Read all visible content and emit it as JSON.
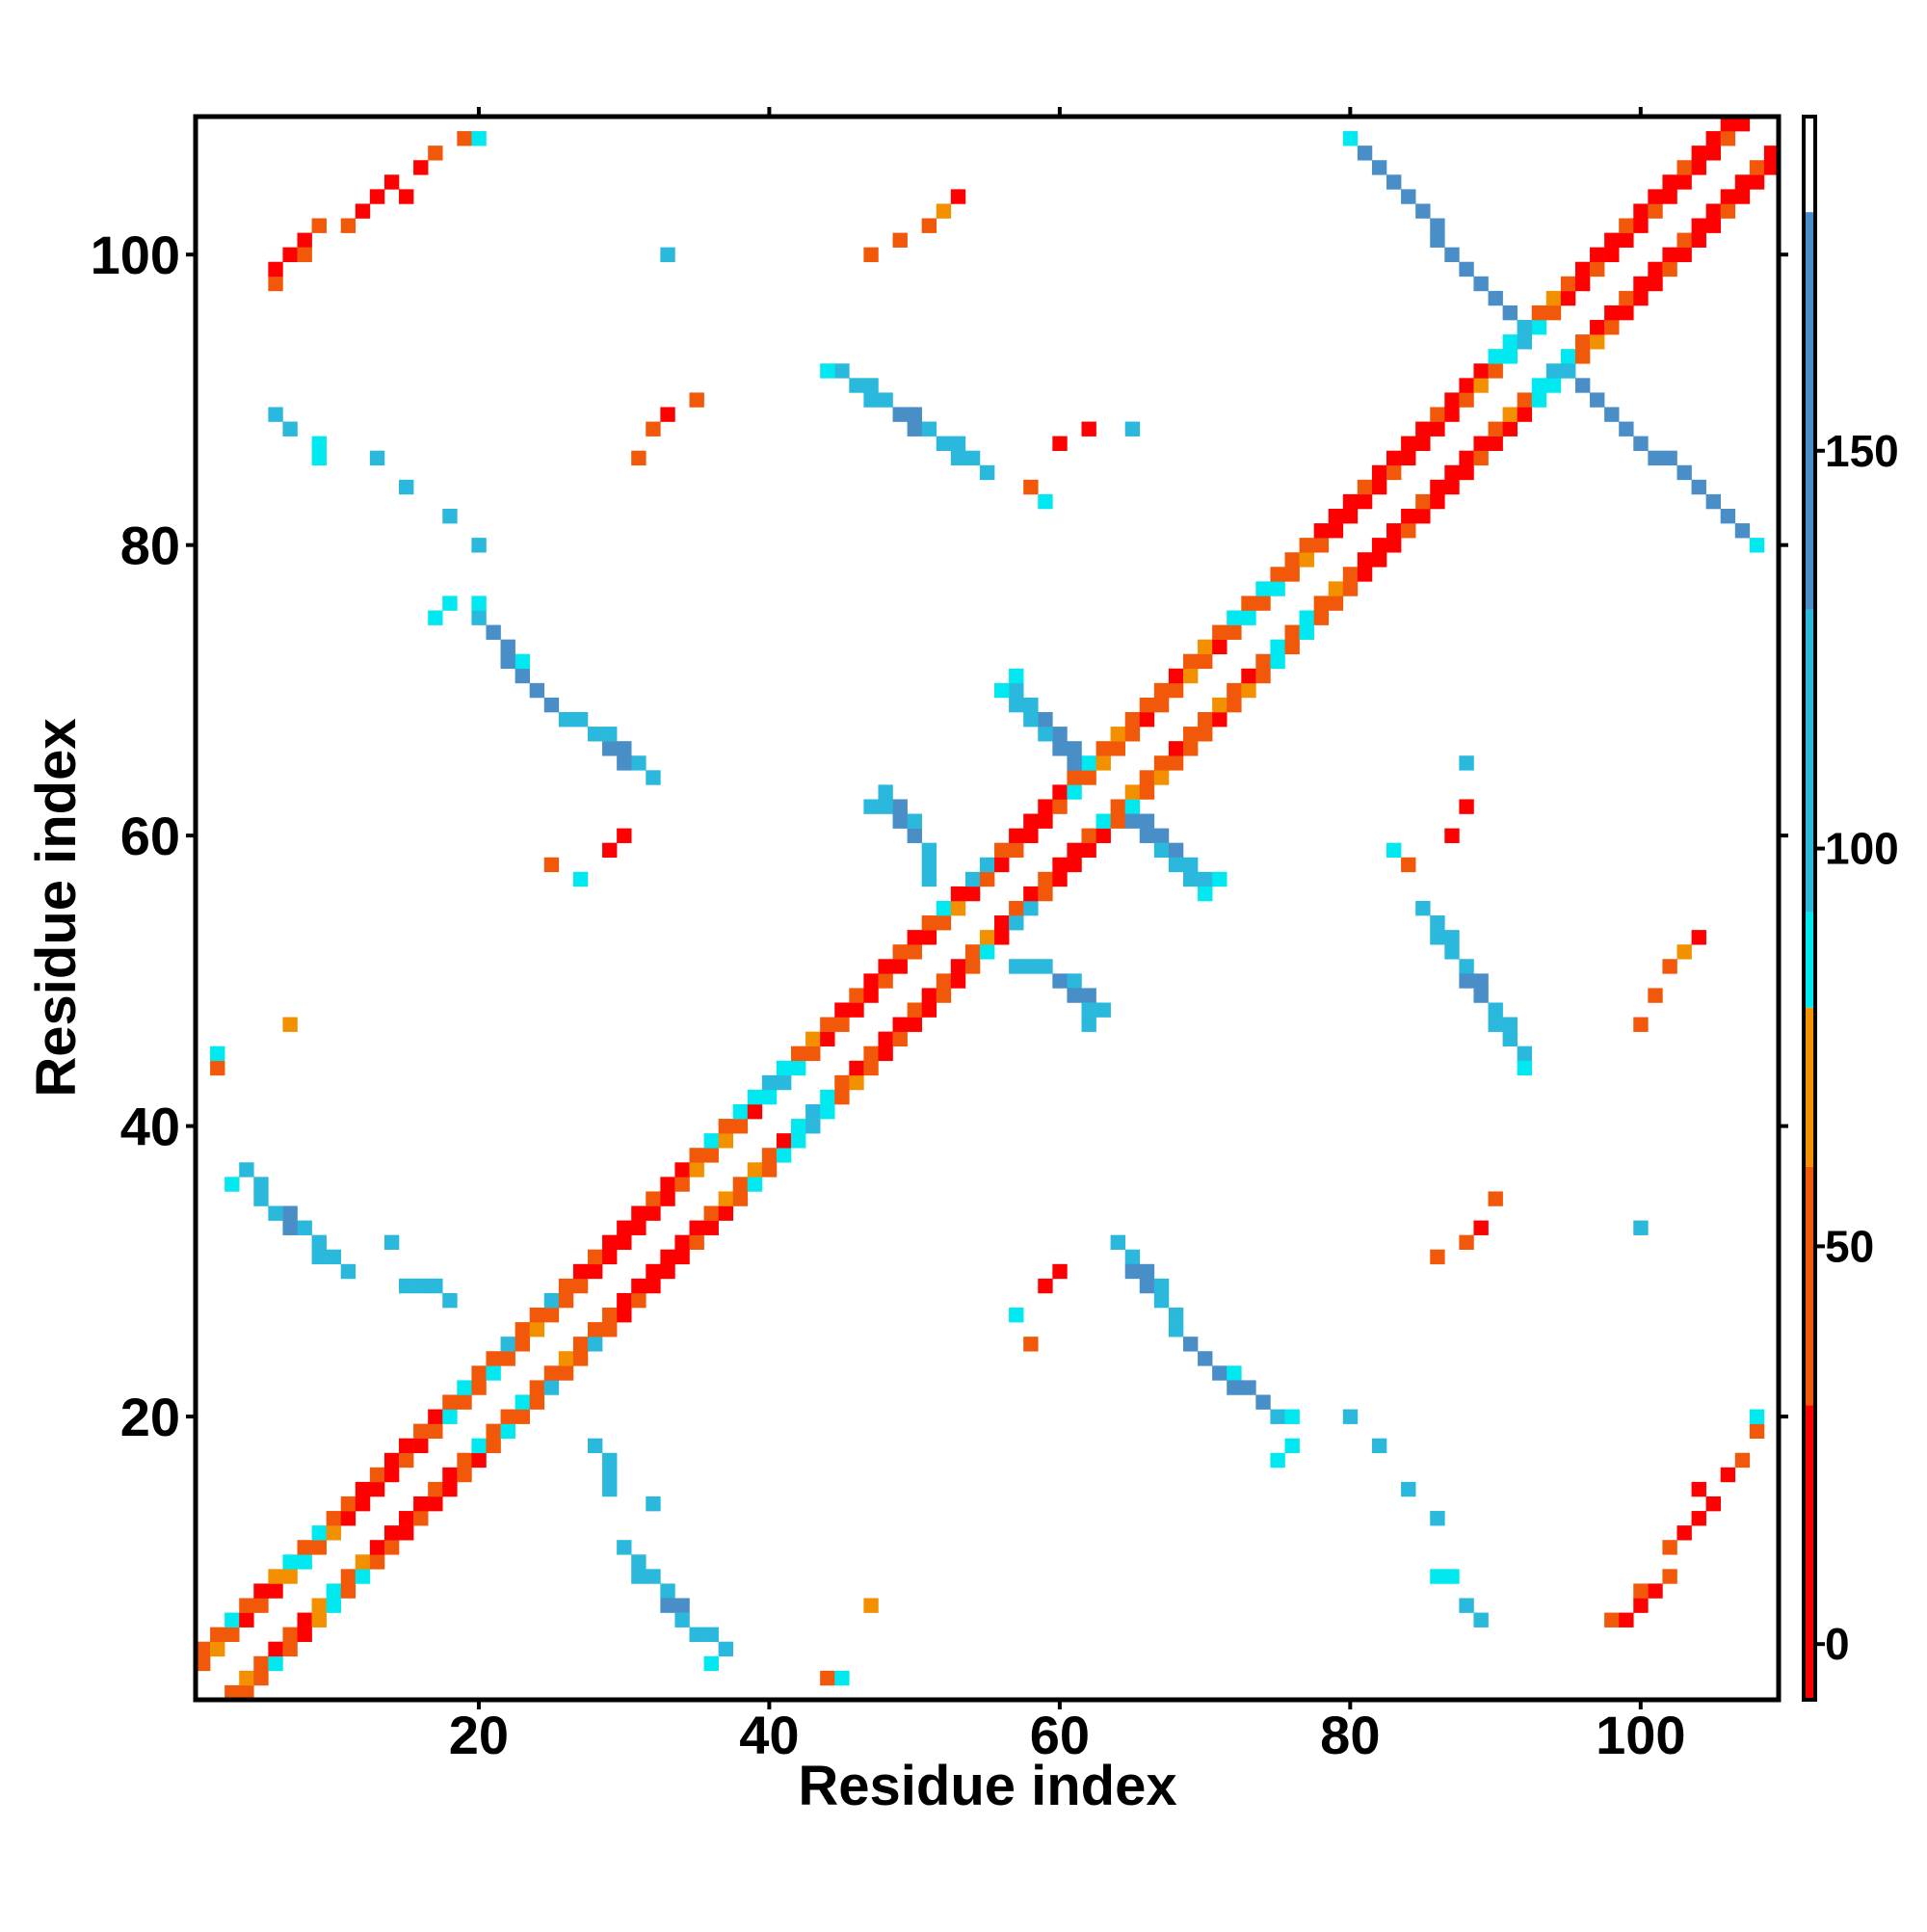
{
  "chart_data": {
    "type": "heatmap",
    "xlabel": "Residue index",
    "ylabel": "Residue index",
    "xlim": [
      0.5,
      109.5
    ],
    "ylim": [
      0.5,
      109.5
    ],
    "xticks": [
      20,
      40,
      60,
      80,
      100
    ],
    "yticks": [
      20,
      40,
      60,
      80,
      100
    ],
    "symmetric": true,
    "colorbar": {
      "lim": [
        -7,
        192
      ],
      "ticks": [
        0,
        50,
        100,
        150
      ],
      "bins": [
        {
          "from": -7,
          "to": 30,
          "color": "#ff0000"
        },
        {
          "from": 30,
          "to": 60,
          "color": "#f2580a"
        },
        {
          "from": 60,
          "to": 80,
          "color": "#f29000"
        },
        {
          "from": 80,
          "to": 92,
          "color": "#00e8f0"
        },
        {
          "from": 92,
          "to": 130,
          "color": "#2ab8dc"
        },
        {
          "from": 130,
          "to": 180,
          "color": "#4a8ec8"
        },
        {
          "from": 180,
          "to": 192,
          "color": "#ffffff"
        }
      ]
    },
    "cells": [
      [
        3,
        1,
        45
      ],
      [
        4,
        1,
        45
      ],
      [
        4,
        2,
        70
      ],
      [
        5,
        2,
        45
      ],
      [
        5,
        3,
        45
      ],
      [
        6,
        3,
        85
      ],
      [
        6,
        4,
        15
      ],
      [
        7,
        4,
        45
      ],
      [
        7,
        5,
        45
      ],
      [
        8,
        5,
        15
      ],
      [
        8,
        6,
        15
      ],
      [
        9,
        6,
        70
      ],
      [
        9,
        7,
        70
      ],
      [
        10,
        7,
        85
      ],
      [
        10,
        8,
        85
      ],
      [
        11,
        8,
        45
      ],
      [
        11,
        9,
        45
      ],
      [
        12,
        9,
        85
      ],
      [
        12,
        10,
        70
      ],
      [
        13,
        10,
        45
      ],
      [
        13,
        11,
        15
      ],
      [
        14,
        11,
        45
      ],
      [
        14,
        12,
        15
      ],
      [
        15,
        12,
        15
      ],
      [
        15,
        13,
        15
      ],
      [
        16,
        13,
        45
      ],
      [
        16,
        14,
        15
      ],
      [
        17,
        14,
        15
      ],
      [
        17,
        15,
        45
      ],
      [
        18,
        15,
        15
      ],
      [
        18,
        16,
        15
      ],
      [
        19,
        16,
        45
      ],
      [
        19,
        17,
        45
      ],
      [
        20,
        17,
        15
      ],
      [
        20,
        18,
        85
      ],
      [
        21,
        18,
        45
      ],
      [
        21,
        19,
        45
      ],
      [
        22,
        19,
        85
      ],
      [
        22,
        20,
        45
      ],
      [
        23,
        20,
        45
      ],
      [
        23,
        21,
        85
      ],
      [
        24,
        21,
        45
      ],
      [
        24,
        22,
        45
      ],
      [
        25,
        22,
        110
      ],
      [
        25,
        23,
        45
      ],
      [
        26,
        23,
        45
      ],
      [
        26,
        24,
        70
      ],
      [
        27,
        24,
        45
      ],
      [
        27,
        25,
        45
      ],
      [
        28,
        25,
        110
      ],
      [
        28,
        26,
        45
      ],
      [
        29,
        26,
        45
      ],
      [
        29,
        27,
        45
      ],
      [
        30,
        27,
        15
      ],
      [
        30,
        28,
        15
      ],
      [
        31,
        28,
        45
      ],
      [
        31,
        29,
        15
      ],
      [
        32,
        29,
        15
      ],
      [
        32,
        30,
        15
      ],
      [
        33,
        30,
        15
      ],
      [
        33,
        31,
        15
      ],
      [
        34,
        31,
        15
      ],
      [
        34,
        32,
        15
      ],
      [
        35,
        32,
        45
      ],
      [
        35,
        33,
        15
      ],
      [
        36,
        33,
        15
      ],
      [
        36,
        34,
        45
      ],
      [
        37,
        34,
        15
      ],
      [
        37,
        35,
        70
      ],
      [
        38,
        35,
        45
      ],
      [
        38,
        36,
        45
      ],
      [
        39,
        36,
        85
      ],
      [
        39,
        37,
        70
      ],
      [
        40,
        37,
        45
      ],
      [
        40,
        38,
        45
      ],
      [
        41,
        38,
        85
      ],
      [
        41,
        39,
        15
      ],
      [
        42,
        39,
        85
      ],
      [
        42,
        40,
        85
      ],
      [
        43,
        40,
        110
      ],
      [
        43,
        41,
        110
      ],
      [
        44,
        41,
        85
      ],
      [
        44,
        42,
        85
      ],
      [
        45,
        42,
        45
      ],
      [
        45,
        43,
        45
      ],
      [
        46,
        43,
        70
      ],
      [
        46,
        44,
        15
      ],
      [
        47,
        44,
        45
      ],
      [
        47,
        45,
        45
      ],
      [
        48,
        45,
        15
      ],
      [
        48,
        46,
        15
      ],
      [
        49,
        46,
        45
      ],
      [
        49,
        47,
        15
      ],
      [
        50,
        47,
        15
      ],
      [
        50,
        48,
        45
      ],
      [
        51,
        48,
        15
      ],
      [
        51,
        49,
        15
      ],
      [
        52,
        49,
        45
      ],
      [
        52,
        50,
        45
      ],
      [
        53,
        50,
        15
      ],
      [
        53,
        51,
        15
      ],
      [
        54,
        51,
        45
      ],
      [
        54,
        52,
        45
      ],
      [
        55,
        52,
        85
      ],
      [
        55,
        53,
        70
      ],
      [
        56,
        53,
        15
      ],
      [
        56,
        54,
        15
      ],
      [
        57,
        54,
        110
      ],
      [
        57,
        55,
        45
      ],
      [
        58,
        55,
        110
      ],
      [
        58,
        56,
        15
      ],
      [
        59,
        56,
        45
      ],
      [
        59,
        57,
        45
      ],
      [
        60,
        57,
        15
      ],
      [
        60,
        58,
        15
      ],
      [
        61,
        58,
        15
      ],
      [
        61,
        59,
        15
      ],
      [
        62,
        59,
        15
      ],
      [
        62,
        60,
        45
      ],
      [
        63,
        60,
        15
      ],
      [
        63,
        61,
        85
      ],
      [
        64,
        61,
        45
      ],
      [
        64,
        62,
        45
      ],
      [
        65,
        62,
        85
      ],
      [
        65,
        63,
        70
      ],
      [
        66,
        63,
        45
      ],
      [
        66,
        64,
        45
      ],
      [
        67,
        64,
        70
      ],
      [
        67,
        65,
        45
      ],
      [
        68,
        65,
        45
      ],
      [
        68,
        66,
        15
      ],
      [
        69,
        66,
        45
      ],
      [
        69,
        67,
        45
      ],
      [
        70,
        67,
        45
      ],
      [
        70,
        68,
        45
      ],
      [
        71,
        68,
        15
      ],
      [
        71,
        69,
        70
      ],
      [
        72,
        69,
        45
      ],
      [
        72,
        70,
        45
      ],
      [
        73,
        70,
        70
      ],
      [
        73,
        71,
        15
      ],
      [
        74,
        71,
        45
      ],
      [
        74,
        72,
        45
      ],
      [
        75,
        72,
        85
      ],
      [
        75,
        73,
        85
      ],
      [
        76,
        73,
        45
      ],
      [
        76,
        74,
        45
      ],
      [
        77,
        74,
        85
      ],
      [
        77,
        75,
        85
      ],
      [
        78,
        75,
        45
      ],
      [
        78,
        76,
        45
      ],
      [
        79,
        76,
        45
      ],
      [
        79,
        77,
        70
      ],
      [
        80,
        77,
        45
      ],
      [
        80,
        78,
        45
      ],
      [
        81,
        78,
        15
      ],
      [
        81,
        79,
        15
      ],
      [
        82,
        79,
        15
      ],
      [
        82,
        80,
        15
      ],
      [
        83,
        80,
        15
      ],
      [
        83,
        81,
        15
      ],
      [
        84,
        81,
        45
      ],
      [
        84,
        82,
        15
      ],
      [
        85,
        82,
        15
      ],
      [
        85,
        83,
        45
      ],
      [
        86,
        83,
        15
      ],
      [
        86,
        84,
        15
      ],
      [
        87,
        84,
        15
      ],
      [
        87,
        85,
        15
      ],
      [
        88,
        85,
        15
      ],
      [
        88,
        86,
        15
      ],
      [
        89,
        86,
        45
      ],
      [
        89,
        87,
        15
      ],
      [
        90,
        87,
        15
      ],
      [
        90,
        88,
        45
      ],
      [
        91,
        88,
        15
      ],
      [
        91,
        89,
        70
      ],
      [
        92,
        89,
        15
      ],
      [
        92,
        90,
        45
      ],
      [
        93,
        90,
        85
      ],
      [
        93,
        91,
        85
      ],
      [
        94,
        91,
        85
      ],
      [
        94,
        92,
        110
      ],
      [
        95,
        92,
        85
      ],
      [
        95,
        93,
        85
      ],
      [
        96,
        93,
        45
      ],
      [
        96,
        94,
        45
      ],
      [
        97,
        94,
        70
      ],
      [
        97,
        95,
        15
      ],
      [
        98,
        95,
        45
      ],
      [
        98,
        96,
        15
      ],
      [
        99,
        96,
        15
      ],
      [
        99,
        97,
        45
      ],
      [
        100,
        97,
        15
      ],
      [
        100,
        98,
        15
      ],
      [
        101,
        98,
        15
      ],
      [
        101,
        99,
        15
      ],
      [
        102,
        99,
        45
      ],
      [
        102,
        100,
        15
      ],
      [
        103,
        100,
        15
      ],
      [
        103,
        101,
        45
      ],
      [
        104,
        101,
        15
      ],
      [
        104,
        102,
        15
      ],
      [
        105,
        102,
        15
      ],
      [
        105,
        103,
        15
      ],
      [
        106,
        103,
        45
      ],
      [
        106,
        104,
        15
      ],
      [
        107,
        104,
        15
      ],
      [
        107,
        105,
        15
      ],
      [
        108,
        105,
        15
      ],
      [
        108,
        106,
        45
      ],
      [
        109,
        106,
        15
      ],
      [
        109,
        107,
        15
      ],
      [
        65,
        61,
        160
      ],
      [
        66,
        61,
        160
      ],
      [
        66,
        60,
        160
      ],
      [
        67,
        60,
        160
      ],
      [
        67,
        59,
        110
      ],
      [
        68,
        59,
        160
      ],
      [
        68,
        58,
        110
      ],
      [
        69,
        58,
        110
      ],
      [
        69,
        57,
        110
      ],
      [
        70,
        57,
        110
      ],
      [
        71,
        57,
        85
      ],
      [
        70,
        56,
        85
      ],
      [
        57,
        51,
        110
      ],
      [
        58,
        51,
        110
      ],
      [
        59,
        51,
        110
      ],
      [
        60,
        50,
        160
      ],
      [
        61,
        50,
        110
      ],
      [
        61,
        49,
        160
      ],
      [
        62,
        49,
        160
      ],
      [
        62,
        48,
        110
      ],
      [
        63,
        48,
        110
      ],
      [
        62,
        47,
        110
      ],
      [
        85,
        55,
        110
      ],
      [
        86,
        54,
        110
      ],
      [
        86,
        53,
        110
      ],
      [
        87,
        53,
        110
      ],
      [
        87,
        52,
        110
      ],
      [
        88,
        51,
        110
      ],
      [
        88,
        50,
        160
      ],
      [
        89,
        50,
        160
      ],
      [
        89,
        49,
        160
      ],
      [
        90,
        48,
        110
      ],
      [
        90,
        47,
        110
      ],
      [
        91,
        47,
        110
      ],
      [
        91,
        46,
        110
      ],
      [
        92,
        45,
        110
      ],
      [
        92,
        44,
        85
      ],
      [
        64,
        32,
        110
      ],
      [
        65,
        31,
        110
      ],
      [
        65,
        30,
        160
      ],
      [
        66,
        30,
        160
      ],
      [
        66,
        29,
        160
      ],
      [
        67,
        29,
        110
      ],
      [
        67,
        28,
        110
      ],
      [
        68,
        27,
        110
      ],
      [
        68,
        26,
        110
      ],
      [
        69,
        25,
        160
      ],
      [
        70,
        24,
        160
      ],
      [
        71,
        23,
        160
      ],
      [
        72,
        23,
        85
      ],
      [
        72,
        22,
        160
      ],
      [
        73,
        22,
        160
      ],
      [
        74,
        21,
        160
      ],
      [
        75,
        20,
        110
      ],
      [
        76,
        20,
        85
      ],
      [
        30,
        11,
        110
      ],
      [
        31,
        10,
        110
      ],
      [
        31,
        9,
        110
      ],
      [
        32,
        9,
        110
      ],
      [
        33,
        8,
        110
      ],
      [
        33,
        7,
        160
      ],
      [
        34,
        7,
        160
      ],
      [
        34,
        6,
        110
      ],
      [
        35,
        5,
        110
      ],
      [
        36,
        5,
        110
      ],
      [
        37,
        4,
        110
      ],
      [
        36,
        3,
        85
      ],
      [
        95,
        92,
        110
      ],
      [
        96,
        91,
        160
      ],
      [
        97,
        90,
        160
      ],
      [
        98,
        89,
        160
      ],
      [
        99,
        88,
        160
      ],
      [
        100,
        87,
        160
      ],
      [
        101,
        86,
        160
      ],
      [
        102,
        86,
        160
      ],
      [
        103,
        85,
        160
      ],
      [
        104,
        84,
        160
      ],
      [
        105,
        83,
        160
      ],
      [
        106,
        82,
        160
      ],
      [
        107,
        81,
        160
      ],
      [
        108,
        80,
        85
      ],
      [
        98,
        6,
        45
      ],
      [
        99,
        6,
        15
      ],
      [
        100,
        7,
        15
      ],
      [
        101,
        8,
        15
      ],
      [
        102,
        9,
        45
      ],
      [
        102,
        11,
        45
      ],
      [
        103,
        12,
        15
      ],
      [
        104,
        13,
        15
      ],
      [
        105,
        14,
        15
      ],
      [
        106,
        16,
        15
      ],
      [
        107,
        17,
        45
      ],
      [
        108,
        19,
        45
      ],
      [
        108,
        20,
        85
      ],
      [
        100,
        8,
        45
      ],
      [
        104,
        15,
        15
      ],
      [
        86,
        9,
        85
      ],
      [
        87,
        9,
        85
      ],
      [
        88,
        7,
        110
      ],
      [
        89,
        6,
        110
      ],
      [
        100,
        47,
        45
      ],
      [
        101,
        49,
        45
      ],
      [
        102,
        51,
        45
      ],
      [
        103,
        52,
        70
      ],
      [
        104,
        53,
        15
      ],
      [
        88,
        32,
        45
      ],
      [
        89,
        33,
        15
      ],
      [
        90,
        35,
        45
      ],
      [
        86,
        31,
        45
      ],
      [
        57,
        27,
        85
      ],
      [
        58,
        25,
        45
      ],
      [
        59,
        29,
        15
      ],
      [
        60,
        30,
        15
      ],
      [
        47,
        7,
        70
      ],
      [
        44,
        2,
        45
      ],
      [
        45,
        2,
        85
      ],
      [
        100,
        33,
        110
      ],
      [
        88,
        65,
        110
      ],
      [
        88,
        62,
        15
      ],
      [
        84,
        58,
        45
      ],
      [
        87,
        60,
        15
      ],
      [
        83,
        59,
        85
      ],
      [
        28,
        18,
        110
      ],
      [
        29,
        17,
        110
      ],
      [
        29,
        16,
        110
      ],
      [
        29,
        15,
        110
      ],
      [
        32,
        14,
        110
      ],
      [
        80,
        20,
        110
      ],
      [
        82,
        18,
        110
      ],
      [
        84,
        15,
        110
      ],
      [
        86,
        13,
        110
      ],
      [
        76,
        18,
        85
      ],
      [
        75,
        17,
        85
      ]
    ]
  }
}
